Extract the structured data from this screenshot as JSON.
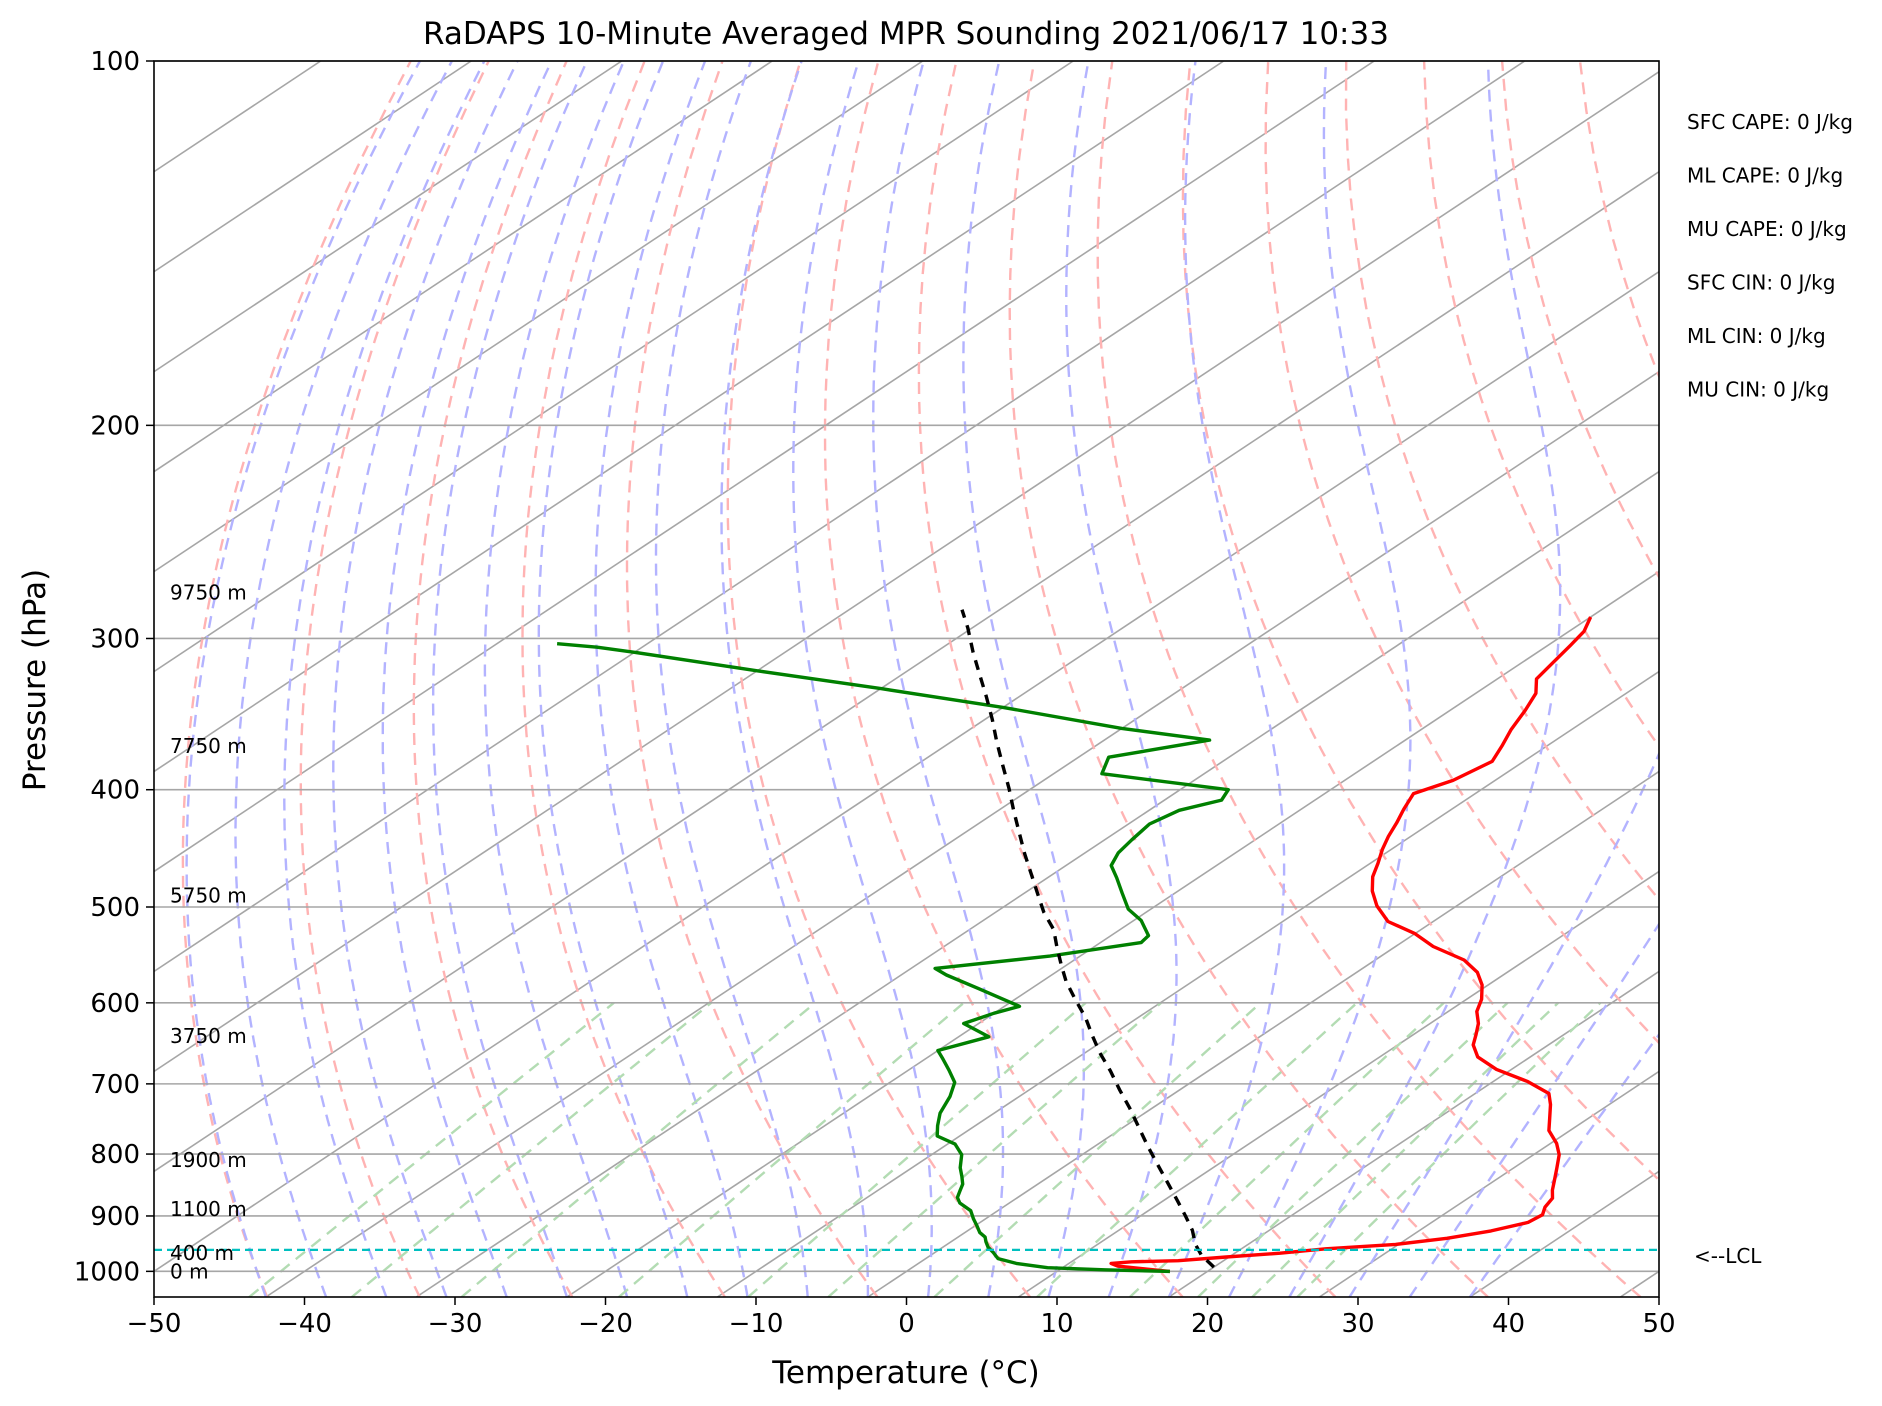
{
  "chart_data": {
    "type": "line",
    "title": "RaDAPS 10-Minute Averaged MPR Sounding 2021/06/17 10:33",
    "xlabel": "Temperature (°C)",
    "ylabel": "Pressure (hPa)",
    "xlim": [
      -50,
      50
    ],
    "ylim": [
      1050,
      100
    ],
    "y_scale": "log",
    "x_ticks": [
      "−50",
      "−40",
      "−30",
      "−20",
      "−10",
      "0",
      "10",
      "20",
      "30",
      "40",
      "50"
    ],
    "y_ticks": [
      100,
      200,
      300,
      400,
      500,
      600,
      700,
      800,
      900,
      1000
    ],
    "grid": true,
    "skew": "skew-T log-P",
    "series": [
      {
        "color": "#ff0000",
        "kind": "temperature",
        "points": [
          [
            17.5,
            1000
          ],
          [
            15.8,
            996
          ],
          [
            13.5,
            990
          ],
          [
            12.8,
            985
          ],
          [
            14.0,
            982
          ],
          [
            17.0,
            980
          ],
          [
            19.8,
            973
          ],
          [
            23.0,
            966
          ],
          [
            25.6,
            958
          ],
          [
            29.8,
            950
          ],
          [
            32.6,
            939
          ],
          [
            34.8,
            926
          ],
          [
            36.4,
            911
          ],
          [
            36.6,
            898
          ],
          [
            36.0,
            885
          ],
          [
            35.6,
            870
          ],
          [
            34.8,
            857
          ],
          [
            34.0,
            842
          ],
          [
            32.9,
            822
          ],
          [
            31.7,
            801
          ],
          [
            30.4,
            784
          ],
          [
            28.6,
            765
          ],
          [
            27.4,
            747
          ],
          [
            26.1,
            728
          ],
          [
            24.9,
            713
          ],
          [
            22.3,
            697
          ],
          [
            19.0,
            681
          ],
          [
            16.5,
            665
          ],
          [
            15.0,
            650
          ],
          [
            14.2,
            638
          ],
          [
            13.2,
            624
          ],
          [
            11.9,
            610
          ],
          [
            11.0,
            596
          ],
          [
            9.6,
            580
          ],
          [
            8.0,
            566
          ],
          [
            5.9,
            553
          ],
          [
            2.5,
            539
          ],
          [
            0.0,
            526
          ],
          [
            -3.0,
            514
          ],
          [
            -5.3,
            499
          ],
          [
            -7.1,
            485
          ],
          [
            -8.5,
            472
          ],
          [
            -9.5,
            460
          ],
          [
            -10.6,
            448
          ],
          [
            -11.5,
            437
          ],
          [
            -12.3,
            426
          ],
          [
            -13.2,
            415
          ],
          [
            -14.1,
            403
          ],
          [
            -12.8,
            393
          ],
          [
            -12.1,
            379
          ],
          [
            -13.0,
            368
          ],
          [
            -14.0,
            357
          ],
          [
            -15.0,
            344
          ],
          [
            -16.0,
            333
          ],
          [
            -17.4,
            324
          ],
          [
            -18.0,
            313
          ],
          [
            -18.5,
            304
          ],
          [
            -19.0,
            296
          ],
          [
            -20.0,
            288
          ]
        ]
      },
      {
        "color": "#008000",
        "kind": "dewpoint",
        "points": [
          [
            17.5,
            1000
          ],
          [
            13.0,
            997
          ],
          [
            9.0,
            993
          ],
          [
            6.5,
            985
          ],
          [
            4.8,
            976
          ],
          [
            3.9,
            965
          ],
          [
            3.0,
            955
          ],
          [
            2.3,
            945
          ],
          [
            1.8,
            937
          ],
          [
            1.0,
            929
          ],
          [
            0.2,
            918
          ],
          [
            -0.8,
            905
          ],
          [
            -1.8,
            891
          ],
          [
            -3.3,
            878
          ],
          [
            -4.0,
            869
          ],
          [
            -4.5,
            858
          ],
          [
            -5.0,
            847
          ],
          [
            -5.8,
            835
          ],
          [
            -6.8,
            821
          ],
          [
            -8.0,
            801
          ],
          [
            -9.5,
            785
          ],
          [
            -11.5,
            773
          ],
          [
            -12.5,
            758
          ],
          [
            -13.6,
            740
          ],
          [
            -14.6,
            717
          ],
          [
            -15.7,
            698
          ],
          [
            -17.3,
            682
          ],
          [
            -19.0,
            666
          ],
          [
            -20.0,
            657
          ],
          [
            -18.0,
            640
          ],
          [
            -21.0,
            624
          ],
          [
            -20.0,
            612
          ],
          [
            -19.0,
            604
          ],
          [
            -23.5,
            584
          ],
          [
            -27.0,
            569
          ],
          [
            -28.4,
            562
          ],
          [
            -22.0,
            549
          ],
          [
            -17.3,
            535
          ],
          [
            -17.5,
            528
          ],
          [
            -19.5,
            513
          ],
          [
            -21.5,
            502
          ],
          [
            -23.5,
            487
          ],
          [
            -25.4,
            473
          ],
          [
            -27.0,
            462
          ],
          [
            -27.8,
            451
          ],
          [
            -28.2,
            440
          ],
          [
            -28.6,
            427
          ],
          [
            -28.0,
            416
          ],
          [
            -26.2,
            408
          ],
          [
            -26.8,
            400
          ],
          [
            -36.8,
            388
          ],
          [
            -38.0,
            376
          ],
          [
            -33.0,
            364
          ],
          [
            -40.0,
            356
          ],
          [
            -50.0,
            342
          ],
          [
            -60.0,
            330
          ],
          [
            -70.0,
            319
          ],
          [
            -80.0,
            308
          ],
          [
            -83.0,
            305
          ],
          [
            -86.0,
            303
          ]
        ]
      },
      {
        "color": "#000000",
        "kind": "parcel",
        "points": [
          [
            20.0,
            992
          ],
          [
            18.0,
            970
          ],
          [
            16.5,
            950
          ],
          [
            14.9,
            925
          ],
          [
            13.0,
            900
          ],
          [
            11.0,
            875
          ],
          [
            8.5,
            845
          ],
          [
            5.9,
            815
          ],
          [
            3.5,
            788
          ],
          [
            1.0,
            760
          ],
          [
            -1.5,
            733
          ],
          [
            -4.0,
            708
          ],
          [
            -6.5,
            683
          ],
          [
            -9.0,
            660
          ],
          [
            -11.3,
            638
          ],
          [
            -13.5,
            617
          ],
          [
            -16.0,
            596
          ],
          [
            -18.4,
            576
          ],
          [
            -20.4,
            558
          ],
          [
            -22.4,
            540
          ],
          [
            -24.4,
            522
          ],
          [
            -26.8,
            505
          ],
          [
            -29.0,
            488
          ],
          [
            -31.4,
            470
          ],
          [
            -33.9,
            452
          ],
          [
            -36.4,
            434
          ],
          [
            -39.0,
            416
          ],
          [
            -41.5,
            399
          ],
          [
            -44.2,
            382
          ],
          [
            -47.0,
            365
          ],
          [
            -49.5,
            350
          ],
          [
            -52.2,
            335
          ],
          [
            -55.1,
            320
          ],
          [
            -57.5,
            308
          ],
          [
            -60.3,
            294
          ],
          [
            -62.5,
            284
          ]
        ]
      }
    ],
    "lcl": {
      "pressure": 960,
      "label": "<--LCL"
    },
    "height_labels": [
      {
        "text": "9750 m",
        "pressure": 275
      },
      {
        "text": "7750 m",
        "pressure": 368
      },
      {
        "text": "5750 m",
        "pressure": 489
      },
      {
        "text": "3750 m",
        "pressure": 639
      },
      {
        "text": "1900 m",
        "pressure": 809
      },
      {
        "text": "1100 m",
        "pressure": 888
      },
      {
        "text": "400 m",
        "pressure": 966
      },
      {
        "text": "0 m",
        "pressure": 1000
      }
    ]
  },
  "params": [
    "SFC CAPE: 0 J/kg",
    "ML CAPE: 0 J/kg",
    "MU CAPE: 0 J/kg",
    "SFC CIN: 0 J/kg",
    "ML CIN: 0 J/kg",
    "MU CIN: 0 J/kg"
  ],
  "colors": {
    "temperature": "#ff0000",
    "dewpoint": "#008000",
    "parcel": "#000000",
    "lcl": "#00bfbf",
    "dry_adiabat": "#ffb3b3",
    "moist_adiabat": "#b3b3ff",
    "mixing_ratio": "#b3dcb3",
    "isotherm": "#a6a6a6"
  }
}
